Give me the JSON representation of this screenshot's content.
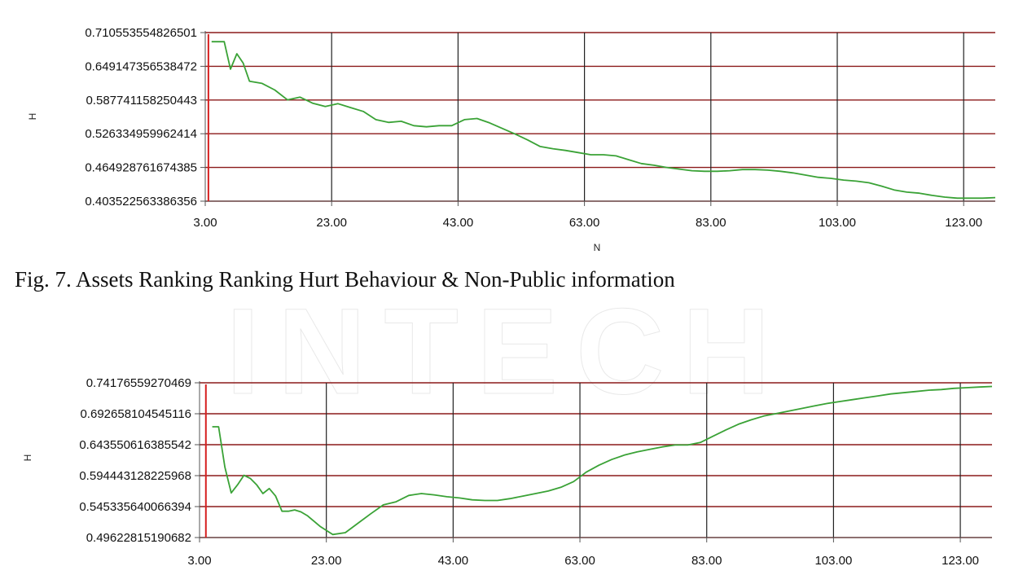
{
  "caption": "Fig. 7. Assets Ranking Ranking Hurt Behaviour & Non-Public information",
  "watermark_text": "INTECH",
  "colors": {
    "series": "#3aa236",
    "grid": "#8b1a1a",
    "marker": "#d62020",
    "axis": "#555555"
  },
  "chart_data": [
    {
      "type": "line",
      "title": "",
      "xlabel": "N",
      "ylabel": "H",
      "xlim": [
        3,
        128
      ],
      "ylim": [
        0.403522563386356,
        0.710553554826501
      ],
      "x_ticks": [
        3,
        23,
        43,
        63,
        83,
        103,
        123
      ],
      "x_tick_labels": [
        "3.00",
        "23.00",
        "43.00",
        "63.00",
        "83.00",
        "103.00",
        "123.00"
      ],
      "y_ticks": [
        0.403522563386356,
        0.464928761674385,
        0.526334959962414,
        0.587741158250443,
        0.649147356538472,
        0.710553554826501
      ],
      "y_tick_labels": [
        "0.403522563386356",
        "0.464928761674385",
        "0.526334959962414",
        "0.587741158250443",
        "0.649147356538472",
        "0.710553554826501"
      ],
      "marker_x": 3.5,
      "grid": true,
      "series": [
        {
          "x": [
            4,
            5,
            6,
            7,
            8,
            9,
            10,
            12,
            14,
            16,
            18,
            20,
            22,
            24,
            26,
            28,
            30,
            32,
            34,
            36,
            38,
            40,
            42,
            44,
            46,
            48,
            50,
            52,
            54,
            56,
            58,
            60,
            62,
            64,
            66,
            68,
            70,
            72,
            74,
            76,
            78,
            80,
            82,
            84,
            86,
            88,
            90,
            92,
            94,
            96,
            98,
            100,
            102,
            104,
            106,
            108,
            110,
            112,
            114,
            116,
            118,
            120,
            122,
            124,
            126,
            128
          ],
          "y": [
            0.694,
            0.694,
            0.694,
            0.644,
            0.672,
            0.655,
            0.622,
            0.618,
            0.606,
            0.588,
            0.593,
            0.582,
            0.576,
            0.581,
            0.574,
            0.567,
            0.552,
            0.547,
            0.549,
            0.541,
            0.539,
            0.541,
            0.541,
            0.552,
            0.554,
            0.546,
            0.536,
            0.526,
            0.515,
            0.503,
            0.499,
            0.496,
            0.492,
            0.488,
            0.488,
            0.486,
            0.479,
            0.472,
            0.469,
            0.465,
            0.462,
            0.459,
            0.458,
            0.458,
            0.459,
            0.461,
            0.461,
            0.46,
            0.458,
            0.455,
            0.451,
            0.447,
            0.445,
            0.442,
            0.44,
            0.437,
            0.431,
            0.424,
            0.42,
            0.418,
            0.414,
            0.411,
            0.409,
            0.409,
            0.409,
            0.41
          ]
        }
      ]
    },
    {
      "type": "line",
      "title": "",
      "xlabel": "",
      "ylabel": "H",
      "xlim": [
        3,
        128
      ],
      "ylim": [
        0.49622815190682,
        0.74176559270469
      ],
      "x_ticks": [
        3,
        23,
        43,
        63,
        83,
        103,
        123
      ],
      "x_tick_labels": [
        "3.00",
        "23.00",
        "43.00",
        "63.00",
        "83.00",
        "103.00",
        "123.00"
      ],
      "y_ticks": [
        0.49622815190682,
        0.545335640066394,
        0.594443128225968,
        0.643550616385542,
        0.692658104545116,
        0.74176559270469
      ],
      "y_tick_labels": [
        "0.49622815190682",
        "0.545335640066394",
        "0.594443128225968",
        "0.643550616385542",
        "0.692658104545116",
        "0.74176559270469"
      ],
      "marker_x": 4,
      "grid": true,
      "series": [
        {
          "x": [
            5,
            6,
            7,
            8,
            9,
            10,
            11,
            12,
            13,
            14,
            15,
            16,
            17,
            18,
            19,
            20,
            22,
            24,
            26,
            28,
            30,
            32,
            34,
            36,
            38,
            40,
            42,
            44,
            46,
            48,
            50,
            52,
            54,
            56,
            58,
            60,
            62,
            64,
            66,
            68,
            70,
            72,
            74,
            76,
            78,
            80,
            82,
            84,
            86,
            88,
            90,
            92,
            94,
            96,
            98,
            100,
            102,
            104,
            106,
            108,
            110,
            112,
            114,
            116,
            118,
            120,
            122,
            124,
            126,
            128
          ],
          "y": [
            0.672,
            0.672,
            0.608,
            0.567,
            0.58,
            0.595,
            0.59,
            0.58,
            0.566,
            0.574,
            0.562,
            0.538,
            0.538,
            0.54,
            0.537,
            0.531,
            0.514,
            0.501,
            0.504,
            0.519,
            0.534,
            0.548,
            0.553,
            0.563,
            0.566,
            0.564,
            0.561,
            0.559,
            0.556,
            0.555,
            0.555,
            0.558,
            0.562,
            0.566,
            0.57,
            0.576,
            0.585,
            0.6,
            0.611,
            0.62,
            0.627,
            0.632,
            0.636,
            0.64,
            0.643,
            0.643,
            0.647,
            0.657,
            0.667,
            0.676,
            0.683,
            0.689,
            0.693,
            0.697,
            0.701,
            0.705,
            0.709,
            0.712,
            0.715,
            0.718,
            0.721,
            0.724,
            0.726,
            0.728,
            0.73,
            0.731,
            0.733,
            0.734,
            0.735,
            0.736
          ]
        }
      ]
    }
  ]
}
